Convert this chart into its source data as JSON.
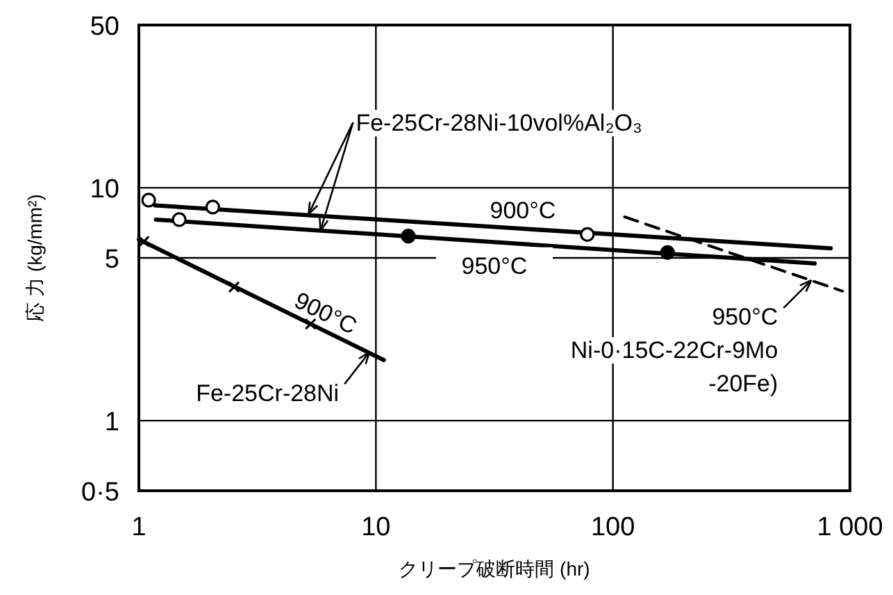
{
  "chart_data": {
    "type": "line",
    "xlabel": "クリープ破断時間 (hr)",
    "ylabel": "応 力 (kg/mm²)",
    "log": "xy",
    "grid": true,
    "xlim": [
      1,
      1000
    ],
    "ylim": [
      0.5,
      50
    ],
    "xticks": [
      1,
      10,
      100,
      {
        "value": 1000,
        "label": "1 000"
      }
    ],
    "yticks": [
      {
        "value": 0.5,
        "label": "0·5"
      },
      1,
      5,
      10,
      50
    ],
    "series": [
      {
        "color": "#000000",
        "line_style": "solid",
        "x": [
          1.17,
          830
        ],
        "values": [
          8.4,
          5.5
        ]
      },
      {
        "type": "scatter",
        "color": "#ffffff",
        "marker": "circle",
        "x": [
          1.1,
          2.05,
          78
        ],
        "values": [
          8.85,
          8.26,
          6.3
        ]
      },
      {
        "color": "#000000",
        "line_style": "solid",
        "x": [
          1.18,
          710
        ],
        "values": [
          7.3,
          4.73
        ]
      },
      {
        "type": "scatter",
        "color": "#ffffff",
        "marker": "circle",
        "x": [
          1.48
        ],
        "values": [
          7.3
        ]
      },
      {
        "type": "scatter",
        "color": "#000000",
        "marker": "circle",
        "x": [
          13.7,
          170
        ],
        "values": [
          6.2,
          5.27
        ]
      },
      {
        "color": "#000000",
        "line_style": "solid",
        "x": [
          1,
          10.8
        ],
        "values": [
          6.0,
          1.82
        ]
      },
      {
        "type": "scatter",
        "color": "#000000",
        "marker": "cross",
        "x": [
          1.05,
          2.52,
          5.3
        ],
        "values": [
          5.88,
          3.75,
          2.6
        ]
      },
      {
        "color": "#000000",
        "line_style": "dashed",
        "x": [
          112,
          930
        ],
        "values": [
          7.5,
          3.6
        ]
      }
    ],
    "annotations": [
      {
        "text": "Fe-25Cr-28Ni-10vol%Al₂O₃",
        "x": 5.2,
        "y": 7.7
      },
      "900°C",
      "950°C",
      "900°C",
      {
        "text": "Fe-25Cr-28Ni",
        "x": 9.4,
        "y": 1.97
      },
      {
        "text": "950°C\nNi-0·15C-22Cr-9Mo\n-20Fe)",
        "x": 687,
        "y": 4.01
      }
    ]
  }
}
